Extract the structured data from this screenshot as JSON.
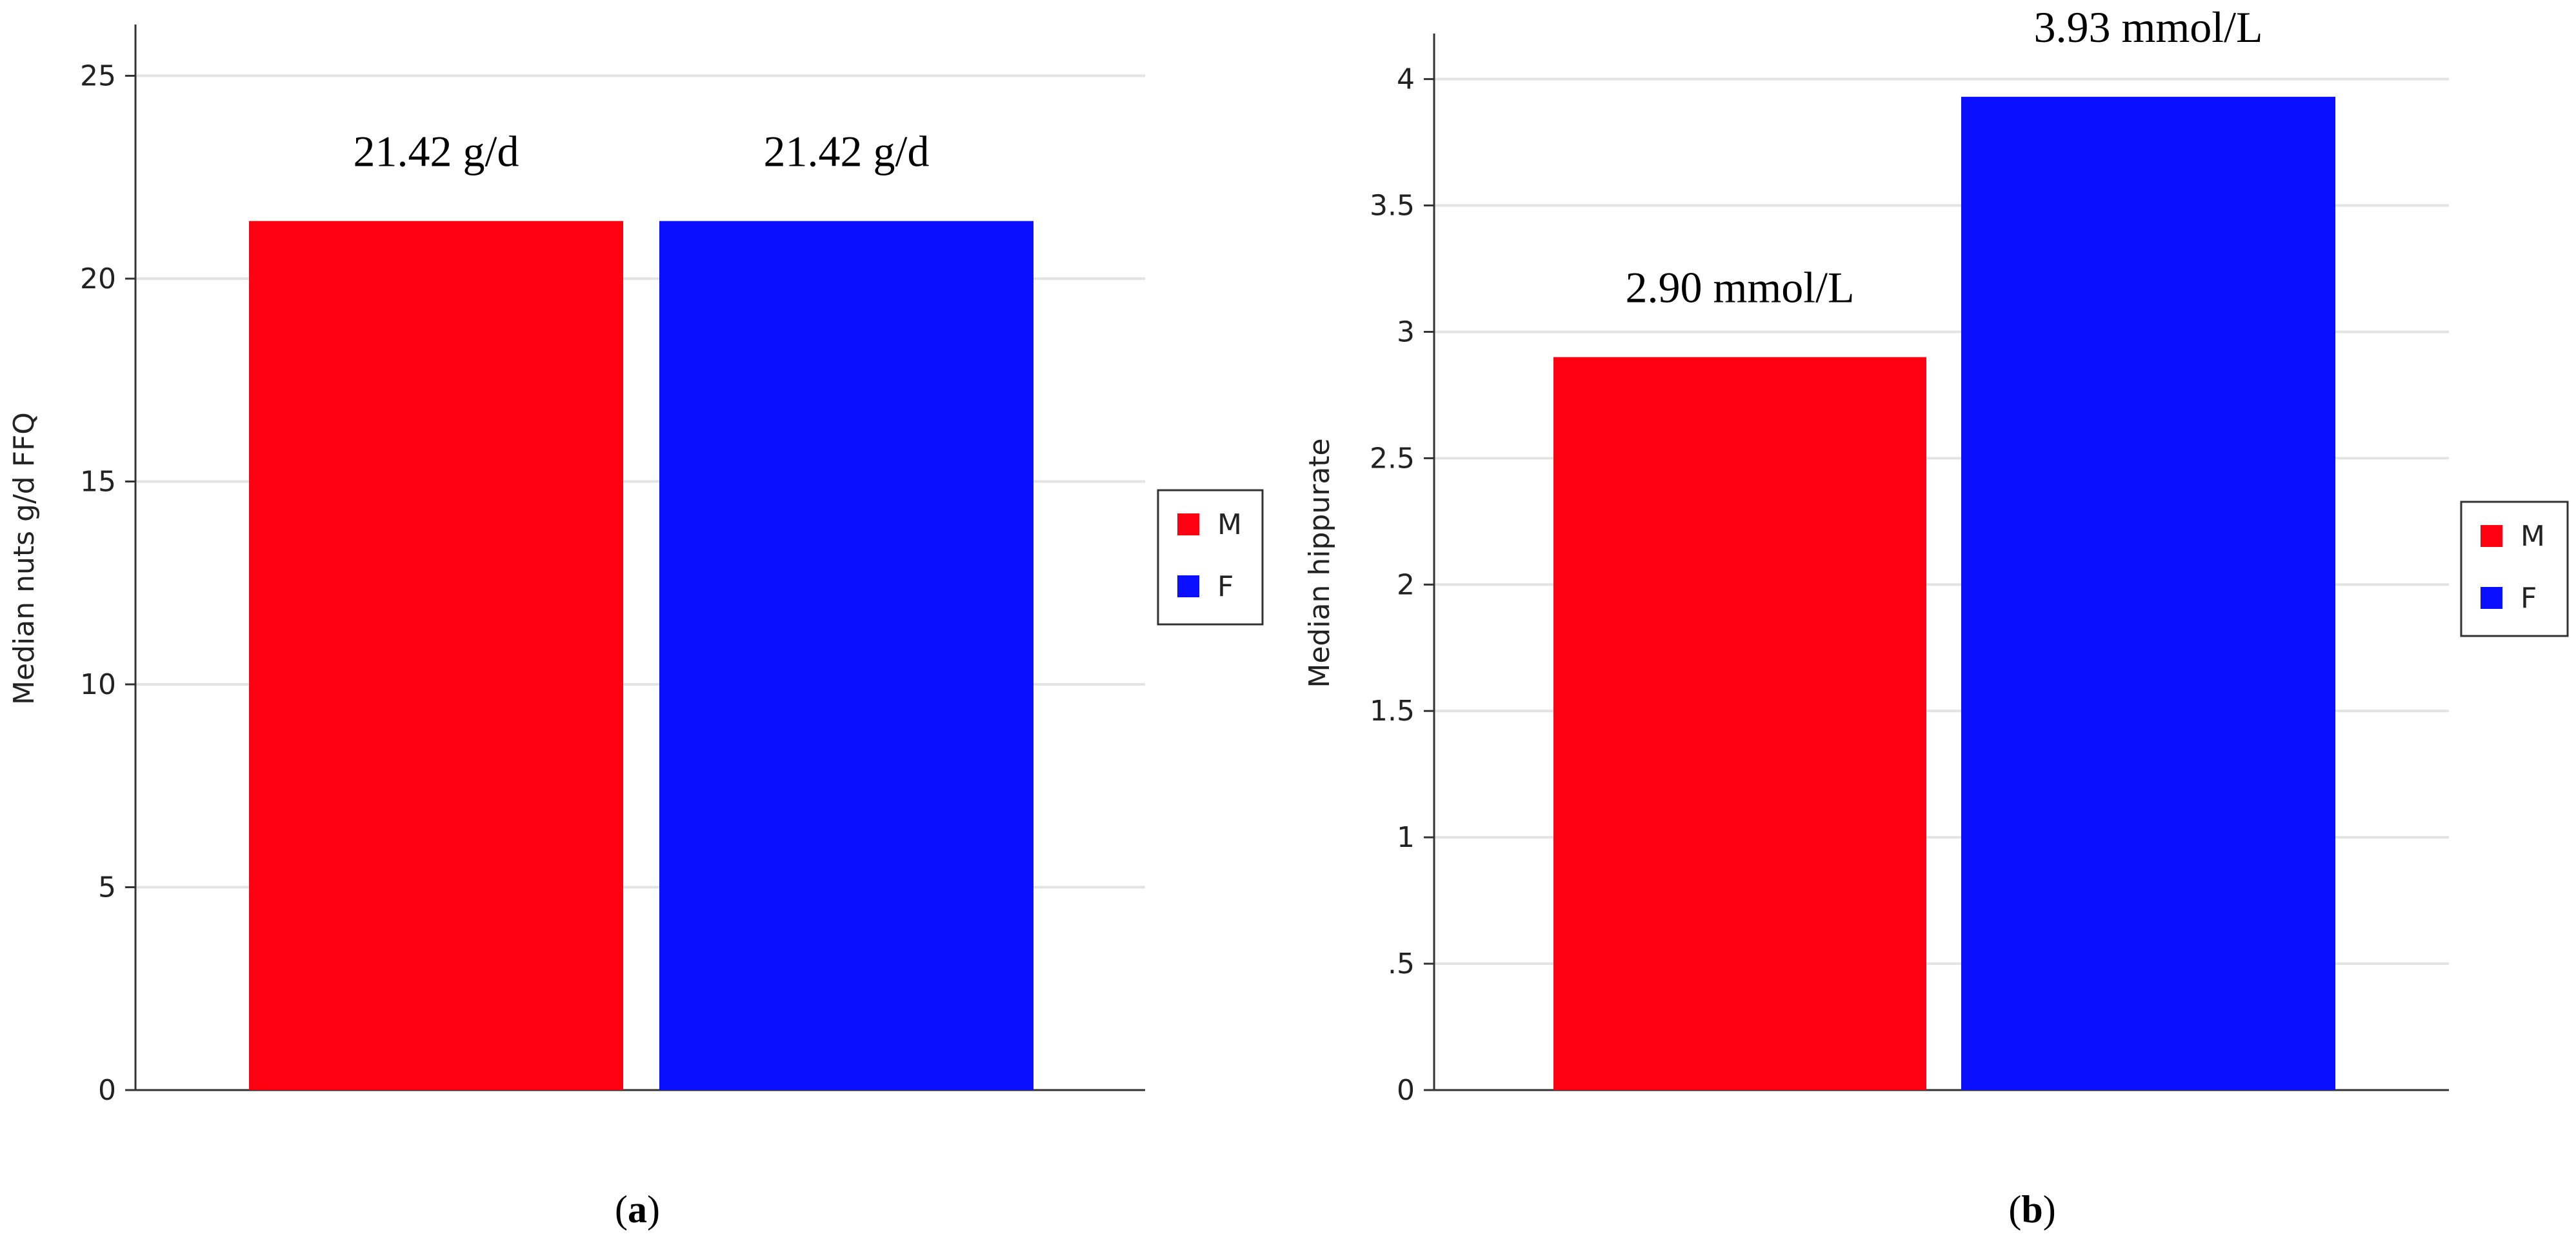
{
  "chart_data": [
    {
      "type": "bar",
      "panel_label": "a",
      "categories": [
        "M",
        "F"
      ],
      "values": [
        21.42,
        21.42
      ],
      "bar_labels": [
        "21.42 g/d",
        "21.42 g/d"
      ],
      "colors": [
        "#ff0010",
        "#0a10ff"
      ],
      "ylabel": "Median nuts g/d FFQ",
      "ylim": [
        0,
        26.2
      ],
      "yticks": [
        0,
        5,
        10,
        15,
        20,
        25
      ],
      "ytick_labels": [
        "0",
        "5",
        "10",
        "15",
        "20",
        "25"
      ],
      "grid": true,
      "legend": {
        "position": "right",
        "entries": [
          "M",
          "F"
        ]
      }
    },
    {
      "type": "bar",
      "panel_label": "b",
      "categories": [
        "M",
        "F"
      ],
      "values": [
        2.9,
        3.93
      ],
      "bar_labels": [
        "2.90 mmol/L",
        "3.93 mmol/L"
      ],
      "colors": [
        "#ff0010",
        "#0a10ff"
      ],
      "ylabel": "Median hippurate",
      "ylim": [
        0,
        4.17
      ],
      "yticks": [
        0,
        0.5,
        1,
        1.5,
        2,
        2.5,
        3,
        3.5,
        4
      ],
      "ytick_labels": [
        "0",
        ".5",
        "1",
        "1.5",
        "2",
        "2.5",
        "3",
        "3.5",
        "4"
      ],
      "grid": true,
      "legend": {
        "position": "right",
        "entries": [
          "M",
          "F"
        ]
      }
    }
  ]
}
